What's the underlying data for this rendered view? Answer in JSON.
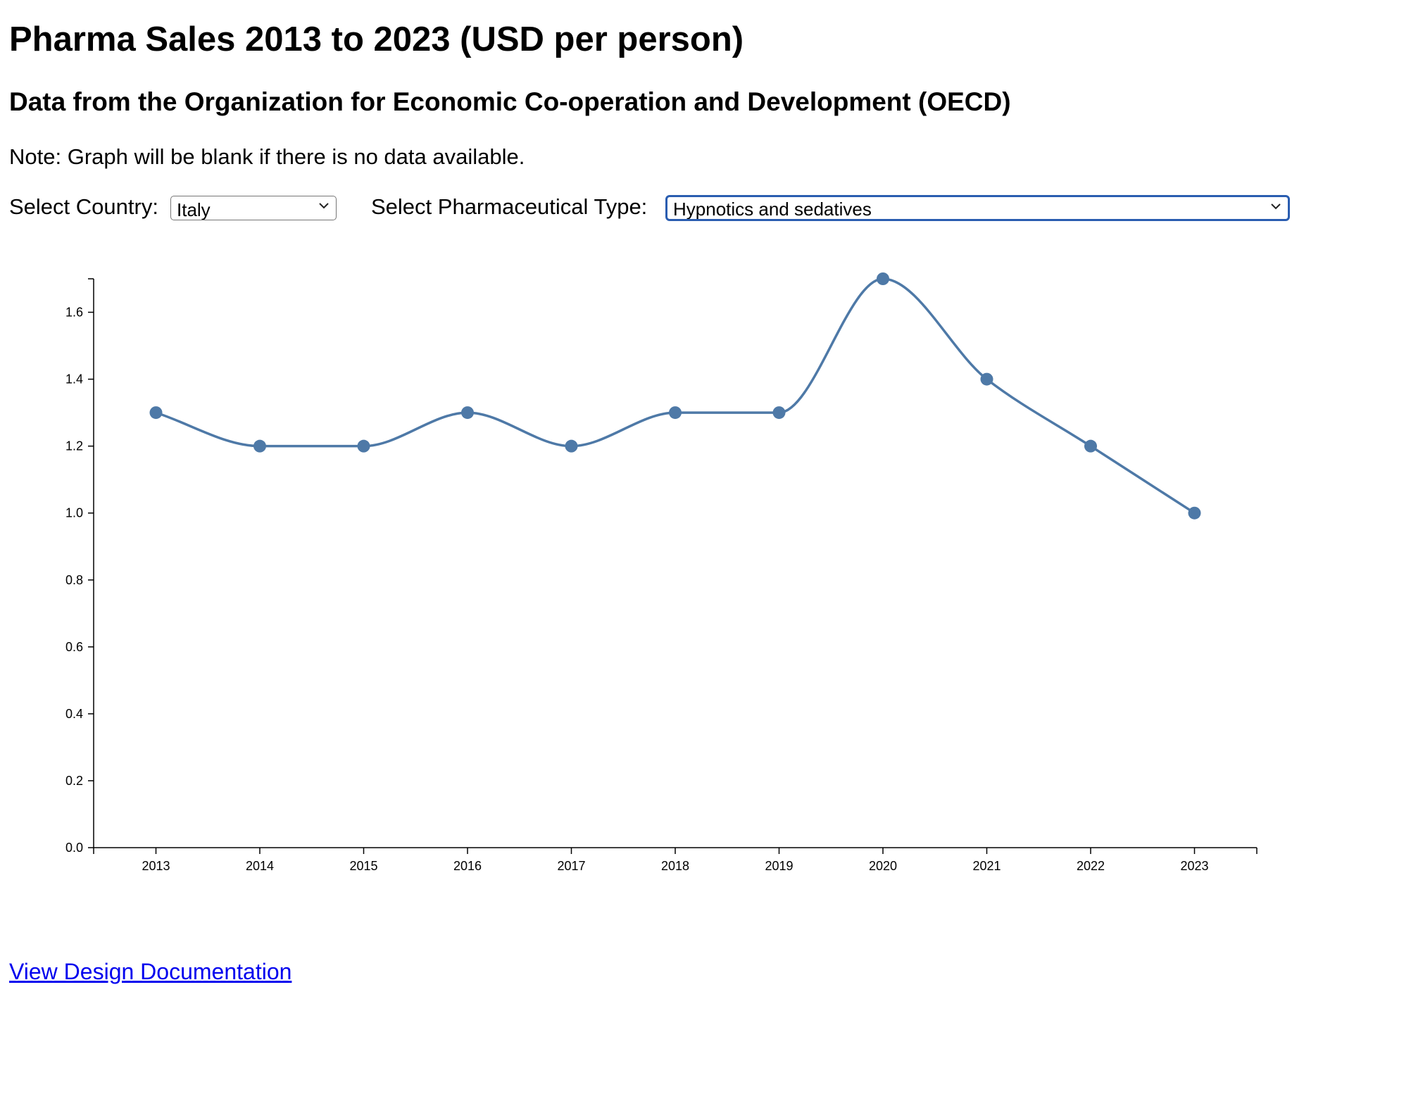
{
  "page": {
    "title": "Pharma Sales 2013 to 2023 (USD per person)",
    "subtitle": "Data from the Organization for Economic Co-operation and Development (OECD)",
    "note": "Note: Graph will be blank if there is no data available."
  },
  "controls": {
    "country_label": "Select Country:",
    "country_value": "Italy",
    "type_label": "Select Pharmaceutical Type:",
    "type_value": "Hypnotics and sedatives"
  },
  "links": {
    "documentation": "View Design Documentation"
  },
  "chart_data": {
    "type": "line",
    "x": [
      "2013",
      "2014",
      "2015",
      "2016",
      "2017",
      "2018",
      "2019",
      "2020",
      "2021",
      "2022",
      "2023"
    ],
    "series": [
      {
        "values": [
          1.3,
          1.2,
          1.2,
          1.3,
          1.2,
          1.3,
          1.3,
          1.7,
          1.4,
          1.2,
          1.0
        ]
      }
    ],
    "y_ticks": [
      "0.0",
      "0.2",
      "0.4",
      "0.6",
      "0.8",
      "1.0",
      "1.2",
      "1.4",
      "1.6"
    ],
    "ylim": [
      0,
      1.7
    ],
    "grid": false,
    "line_color": "#4e79a7",
    "curve": "smooth"
  }
}
